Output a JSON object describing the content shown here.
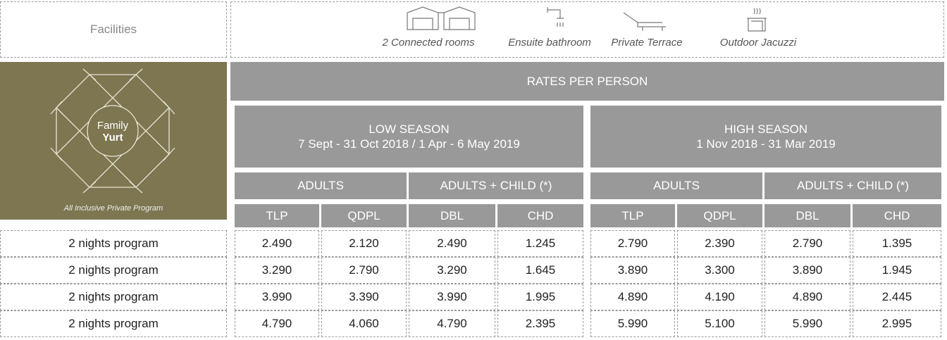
{
  "facilities": {
    "label": "Facilities",
    "items": [
      "2 Connected rooms",
      "Ensuite bathroom",
      "Private Terrace",
      "Outdoor Jacuzzi"
    ]
  },
  "logo": {
    "line1": "Family",
    "line2": "Yurt",
    "caption": "All Inclusive Private Program"
  },
  "rates_header": "RATES PER PERSON",
  "seasons": [
    {
      "name": "LOW SEASON",
      "dates": "7 Sept - 31 Oct 2018 / 1 Apr - 6 May 2019",
      "groups": [
        {
          "name": "ADULTS",
          "cols": [
            "TLP",
            "QDPL"
          ]
        },
        {
          "name": "ADULTS + CHILD (*)",
          "cols": [
            "DBL",
            "CHD"
          ]
        }
      ]
    },
    {
      "name": "HIGH SEASON",
      "dates": "1 Nov 2018 - 31 Mar 2019",
      "groups": [
        {
          "name": "ADULTS",
          "cols": [
            "TLP",
            "QDPL"
          ]
        },
        {
          "name": "ADULTS + CHILD (*)",
          "cols": [
            "DBL",
            "CHD"
          ]
        }
      ]
    }
  ],
  "table": {
    "rows": [
      {
        "label": "2 nights program",
        "values": [
          "2.490",
          "2.120",
          "2.490",
          "1.245",
          "2.790",
          "2.390",
          "2.790",
          "1.395"
        ]
      },
      {
        "label": "2 nights program",
        "values": [
          "3.290",
          "2.790",
          "3.290",
          "1.645",
          "3.890",
          "3.300",
          "3.890",
          "1.945"
        ]
      },
      {
        "label": "2 nights program",
        "values": [
          "3.990",
          "3.390",
          "3.990",
          "1.995",
          "4.890",
          "4.190",
          "4.890",
          "2.445"
        ]
      },
      {
        "label": "2 nights program",
        "values": [
          "4.790",
          "4.060",
          "4.790",
          "2.395",
          "5.990",
          "5.100",
          "5.990",
          "2.995"
        ]
      }
    ]
  }
}
